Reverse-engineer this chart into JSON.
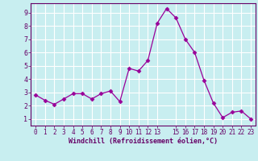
{
  "x": [
    0,
    1,
    2,
    3,
    4,
    5,
    6,
    7,
    8,
    9,
    10,
    11,
    12,
    13,
    14,
    15,
    16,
    17,
    18,
    19,
    20,
    21,
    22,
    23
  ],
  "y": [
    2.8,
    2.4,
    2.1,
    2.5,
    2.9,
    2.9,
    2.5,
    2.9,
    3.1,
    2.3,
    4.8,
    4.6,
    5.4,
    8.2,
    9.3,
    8.6,
    7.0,
    6.0,
    3.9,
    2.2,
    1.1,
    1.5,
    1.6,
    1.0
  ],
  "line_color": "#990099",
  "marker": "D",
  "marker_size": 2.5,
  "background_color": "#c8eef0",
  "grid_color": "#ffffff",
  "xlabel": "Windchill (Refroidissement éolien,°C)",
  "xlabel_color": "#660066",
  "tick_color": "#660066",
  "spine_color": "#660066",
  "ylim": [
    0.5,
    9.7
  ],
  "xlim": [
    -0.5,
    23.5
  ],
  "yticks": [
    1,
    2,
    3,
    4,
    5,
    6,
    7,
    8,
    9
  ],
  "xticks": [
    0,
    1,
    2,
    3,
    4,
    5,
    6,
    7,
    8,
    9,
    10,
    11,
    12,
    13,
    15,
    16,
    17,
    18,
    19,
    20,
    21,
    22,
    23
  ],
  "tick_fontsize": 5.5,
  "xlabel_fontsize": 6.0,
  "ylabel_fontsize": 6.0
}
